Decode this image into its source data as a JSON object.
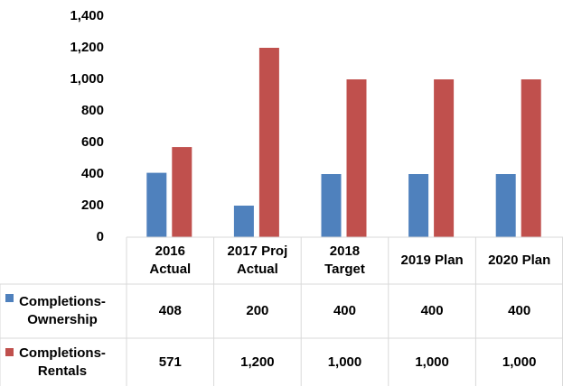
{
  "chart_data": {
    "type": "bar",
    "categories": [
      "2016\nActual",
      "2017 Proj\nActual",
      "2018\nTarget",
      "2019 Plan",
      "2020 Plan"
    ],
    "series": [
      {
        "name": "Completions-Ownership",
        "color": "#4f81bd",
        "values": [
          408,
          200,
          400,
          400,
          400
        ],
        "value_labels": [
          "408",
          "200",
          "400",
          "400",
          "400"
        ]
      },
      {
        "name": "Completions-Rentals",
        "color": "#c0504d",
        "values": [
          571,
          1200,
          1000,
          1000,
          1000
        ],
        "value_labels": [
          "571",
          "1,200",
          "1,000",
          "1,000",
          "1,000"
        ]
      }
    ],
    "ylim": [
      0,
      1400
    ],
    "yticks": [
      0,
      200,
      400,
      600,
      800,
      {
        "value": 1000,
        "label": "1,000"
      },
      {
        "value": 1200,
        "label": "1,200"
      },
      {
        "value": 1400,
        "label": "1,400"
      }
    ],
    "grid": false,
    "data_table": true
  }
}
